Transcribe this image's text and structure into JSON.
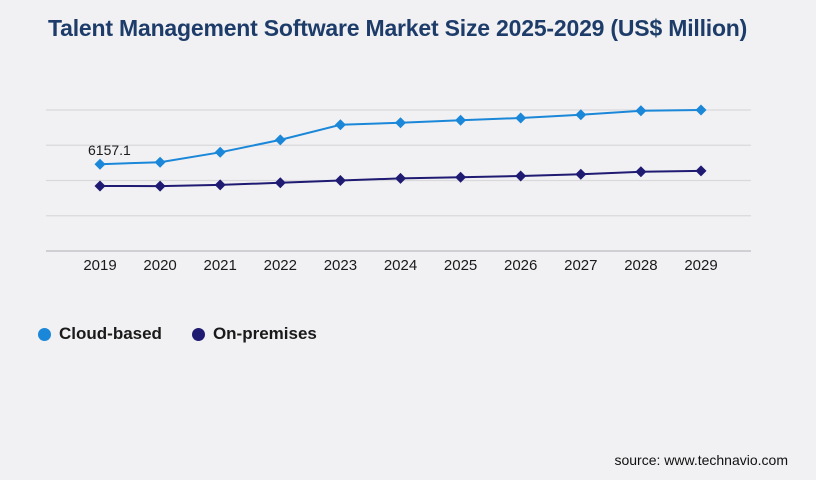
{
  "page": {
    "title": "Talent Management Software Market Size 2025-2029 (US$ Million)",
    "title_color": "#1d3c69",
    "background_color": "#f1f1f3",
    "source": "source: www.technavio.com"
  },
  "chart_data": {
    "type": "line",
    "title": "Talent Management Software Market Size 2025-2029 (US$ Million)",
    "xlabel": "",
    "ylabel": "",
    "x": [
      2019,
      2020,
      2021,
      2022,
      2023,
      2024,
      2025,
      2026,
      2027,
      2028,
      2029
    ],
    "series": [
      {
        "name": "Cloud-based",
        "color": "#1b87d8",
        "marker": "diamond",
        "values": [
          6157.1,
          6300,
          7000,
          7880,
          8950,
          9100,
          9280,
          9430,
          9660,
          9940,
          10000
        ]
      },
      {
        "name": "On-premises",
        "color": "#1f1a72",
        "marker": "diamond",
        "values": [
          4610,
          4600,
          4690,
          4840,
          5000,
          5150,
          5230,
          5320,
          5440,
          5620,
          5680
        ]
      }
    ],
    "annotations": [
      {
        "series": "Cloud-based",
        "x": 2019,
        "text": "6157.1"
      }
    ],
    "ylim": [
      0,
      10000
    ],
    "gridline_values": [
      0,
      2500,
      5000,
      7500,
      10000
    ],
    "grid_on": true,
    "grid_color": "#d9d9dc",
    "axis_color": "#c6c6ca",
    "tick_label_color": "#1a1a1a",
    "tick_label_font_size": 15,
    "legend_position": "bottom-left"
  }
}
